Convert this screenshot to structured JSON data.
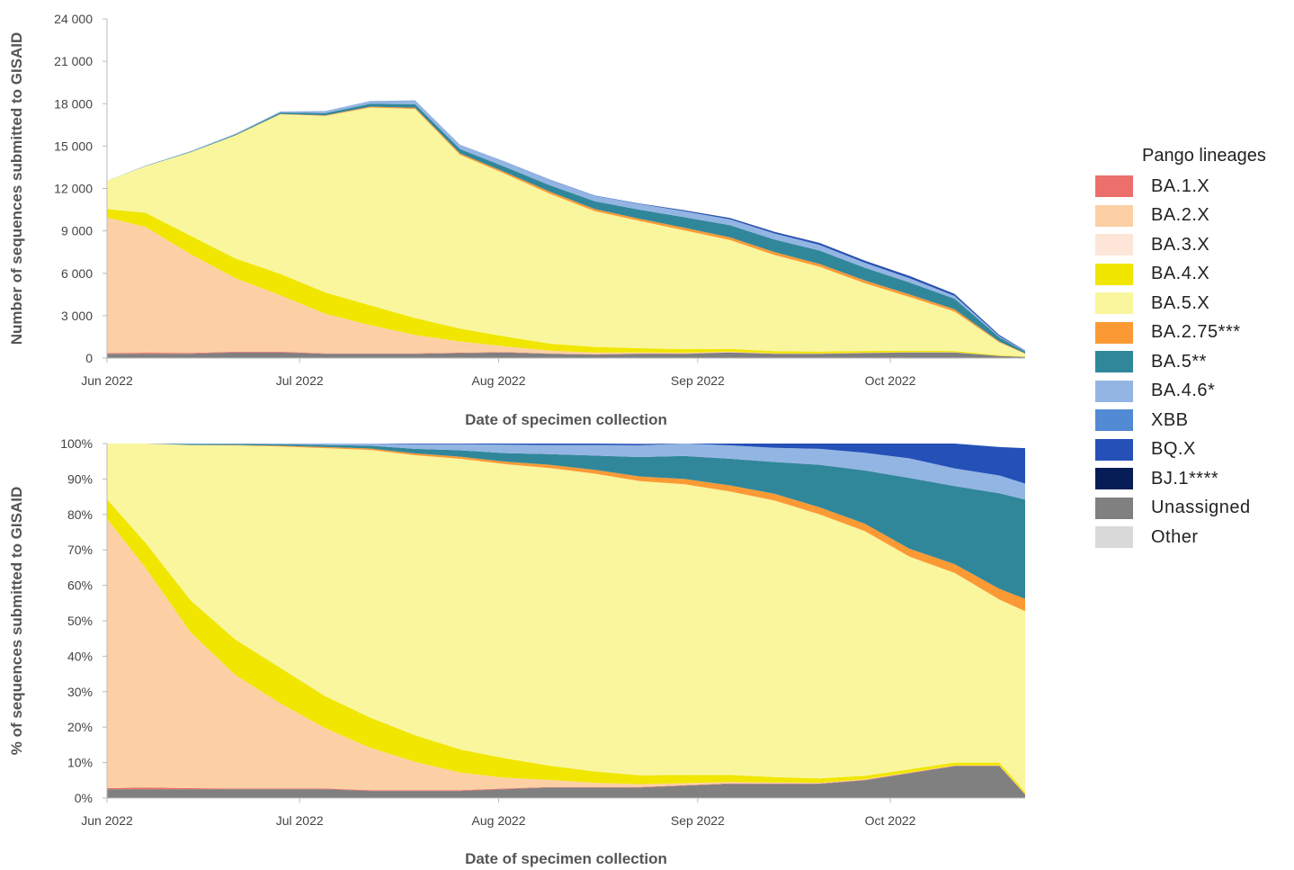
{
  "legend": {
    "title": "Pango lineages",
    "items": [
      {
        "name": "BA.1.X",
        "color": "#ec6f6b"
      },
      {
        "name": "BA.2.X",
        "color": "#fcd0a4"
      },
      {
        "name": "BA.3.X",
        "color": "#fde6d8"
      },
      {
        "name": "BA.4.X",
        "color": "#f0e600"
      },
      {
        "name": "BA.5.X",
        "color": "#faf69e"
      },
      {
        "name": "BA.2.75***",
        "color": "#fb9a35"
      },
      {
        "name": "BA.5**",
        "color": "#31879a"
      },
      {
        "name": "BA.4.6*",
        "color": "#93b5e3"
      },
      {
        "name": "XBB",
        "color": "#528ad4"
      },
      {
        "name": "BQ.X",
        "color": "#2450b8"
      },
      {
        "name": "BJ.1****",
        "color": "#061d55"
      },
      {
        "name": "Unassigned",
        "color": "#808080"
      },
      {
        "name": "Other",
        "color": "#d9d9d9"
      }
    ]
  },
  "chart_data": [
    {
      "type": "area",
      "stacked": true,
      "ylabel": "Number of sequences submitted to GISAID",
      "xlabel": "Date of specimen collection",
      "ylim": [
        0,
        24000
      ],
      "yticks": [
        "0",
        "3 000",
        "6 000",
        "9 000",
        "12 000",
        "15 000",
        "18 000",
        "21 000",
        "24 000"
      ],
      "xticks": [
        "Jun 2022",
        "Jul 2022",
        "Aug 2022",
        "Sep 2022",
        "Oct 2022"
      ],
      "x": [
        "2022-06-01",
        "2022-06-07",
        "2022-06-14",
        "2022-06-21",
        "2022-06-28",
        "2022-07-05",
        "2022-07-12",
        "2022-07-19",
        "2022-07-26",
        "2022-08-02",
        "2022-08-09",
        "2022-08-16",
        "2022-08-23",
        "2022-08-30",
        "2022-09-06",
        "2022-09-13",
        "2022-09-20",
        "2022-09-27",
        "2022-10-04",
        "2022-10-11",
        "2022-10-18",
        "2022-10-22"
      ],
      "series": [
        {
          "name": "Unassigned",
          "values": [
            300,
            300,
            300,
            400,
            400,
            300,
            300,
            300,
            350,
            400,
            300,
            250,
            300,
            300,
            400,
            300,
            300,
            350,
            400,
            400,
            150,
            80
          ]
        },
        {
          "name": "BA.1.X",
          "values": [
            50,
            80,
            60,
            50,
            50,
            40,
            30,
            30,
            30,
            30,
            20,
            20,
            20,
            20,
            10,
            10,
            10,
            10,
            10,
            10,
            5,
            5
          ]
        },
        {
          "name": "BA.2.X",
          "values": [
            9600,
            8900,
            7000,
            5200,
            4000,
            2800,
            2000,
            1300,
            800,
            400,
            200,
            120,
            80,
            60,
            40,
            30,
            20,
            20,
            10,
            10,
            5,
            5
          ]
        },
        {
          "name": "BA.4.X",
          "values": [
            600,
            1000,
            1300,
            1400,
            1500,
            1500,
            1400,
            1200,
            900,
            700,
            500,
            400,
            300,
            250,
            200,
            150,
            130,
            120,
            100,
            80,
            50,
            20
          ]
        },
        {
          "name": "BA.5.X",
          "values": [
            2000,
            3300,
            5900,
            8700,
            11300,
            12500,
            14000,
            14800,
            12300,
            11500,
            10600,
            9600,
            9000,
            8400,
            7700,
            6800,
            6000,
            4800,
            3800,
            2800,
            900,
            200
          ]
        },
        {
          "name": "BA.2.75***",
          "values": [
            0,
            0,
            0,
            10,
            20,
            40,
            60,
            80,
            100,
            120,
            150,
            150,
            150,
            180,
            200,
            200,
            200,
            200,
            180,
            150,
            60,
            20
          ]
        },
        {
          "name": "BA.5**",
          "values": [
            0,
            20,
            40,
            60,
            100,
            150,
            200,
            250,
            300,
            380,
            450,
            550,
            650,
            750,
            850,
            900,
            950,
            900,
            850,
            750,
            300,
            120
          ]
        },
        {
          "name": "BA.4.6*",
          "values": [
            0,
            20,
            40,
            60,
            80,
            150,
            200,
            250,
            300,
            350,
            380,
            380,
            400,
            420,
            420,
            420,
            400,
            350,
            300,
            200,
            80,
            40
          ]
        },
        {
          "name": "BQ.X",
          "values": [
            0,
            0,
            0,
            0,
            0,
            0,
            0,
            10,
            10,
            10,
            20,
            30,
            40,
            60,
            80,
            100,
            120,
            130,
            140,
            130,
            70,
            40
          ]
        },
        {
          "name": "BJ.1****",
          "values": [
            0,
            0,
            0,
            0,
            0,
            0,
            0,
            0,
            0,
            0,
            0,
            0,
            0,
            10,
            20,
            20,
            20,
            20,
            20,
            15,
            10,
            5
          ]
        }
      ]
    },
    {
      "type": "area",
      "stacked": true,
      "percent": true,
      "ylabel": "% of sequences submitted to GISAID",
      "xlabel": "Date of specimen collection",
      "ylim": [
        0,
        100
      ],
      "yticks": [
        "0%",
        "10%",
        "20%",
        "30%",
        "40%",
        "50%",
        "60%",
        "70%",
        "80%",
        "90%",
        "100%"
      ],
      "xticks": [
        "Jun 2022",
        "Jul 2022",
        "Aug 2022",
        "Sep 2022",
        "Oct 2022"
      ],
      "x": [
        "2022-06-01",
        "2022-06-07",
        "2022-06-14",
        "2022-06-21",
        "2022-06-28",
        "2022-07-05",
        "2022-07-12",
        "2022-07-19",
        "2022-07-26",
        "2022-08-02",
        "2022-08-09",
        "2022-08-16",
        "2022-08-23",
        "2022-08-30",
        "2022-09-06",
        "2022-09-13",
        "2022-09-20",
        "2022-09-27",
        "2022-10-04",
        "2022-10-11",
        "2022-10-18",
        "2022-10-22"
      ],
      "series": [
        {
          "name": "Unassigned",
          "values": [
            2.5,
            2.5,
            2.5,
            2.5,
            2.5,
            2.5,
            2,
            2,
            2,
            2.5,
            3,
            3,
            3,
            3.5,
            4,
            4,
            4,
            5,
            7,
            9,
            9,
            1
          ]
        },
        {
          "name": "BA.1.X",
          "values": [
            0.3,
            0.5,
            0.3,
            0.2,
            0.2,
            0.2,
            0.2,
            0.2,
            0.2,
            0.2,
            0.1,
            0.1,
            0.1,
            0.1,
            0.1,
            0.1,
            0.1,
            0.1,
            0.1,
            0.1,
            0.1,
            0.1
          ]
        },
        {
          "name": "BA.2.X",
          "values": [
            76,
            62,
            44,
            32,
            24,
            17,
            12,
            8,
            5,
            3,
            2,
            1.2,
            0.8,
            0.6,
            0.4,
            0.3,
            0.2,
            0.2,
            0.1,
            0.1,
            0.1,
            0.1
          ]
        },
        {
          "name": "BA.4.X",
          "values": [
            5.5,
            7,
            9,
            10,
            10,
            9,
            8.5,
            7.5,
            6.5,
            5.5,
            4,
            3.2,
            2.5,
            2.3,
            2,
            1.5,
            1.2,
            1,
            0.9,
            0.8,
            0.8,
            0.5
          ]
        },
        {
          "name": "BA.5.X",
          "values": [
            15.7,
            28,
            43.8,
            54.8,
            62.5,
            70,
            75.5,
            79,
            82,
            83,
            84,
            84,
            83,
            82,
            80,
            78,
            74.5,
            69,
            60,
            53.5,
            46,
            51
          ]
        },
        {
          "name": "BA.2.75***",
          "values": [
            0,
            0,
            0,
            0.1,
            0.2,
            0.3,
            0.4,
            0.5,
            0.6,
            0.7,
            0.9,
            1.1,
            1.3,
            1.5,
            1.7,
            1.9,
            2,
            2.1,
            2.2,
            2.5,
            3,
            3.5
          ]
        },
        {
          "name": "BA.5**",
          "values": [
            0,
            0.2,
            0.3,
            0.3,
            0.4,
            0.6,
            0.8,
            1.3,
            1.8,
            2.4,
            3,
            4,
            5.5,
            6.5,
            7.5,
            9,
            12,
            15,
            20,
            22,
            27,
            28
          ]
        },
        {
          "name": "BA.4.6*",
          "values": [
            0,
            0.2,
            0.3,
            0.3,
            0.4,
            0.6,
            0.8,
            1.3,
            1.7,
            2.4,
            2.6,
            3,
            3.3,
            3.5,
            3.8,
            4,
            4.5,
            5,
            5.5,
            5,
            5,
            4.5
          ]
        },
        {
          "name": "BQ.X",
          "values": [
            0,
            0,
            0,
            0,
            0,
            0.1,
            0.2,
            0.2,
            0.2,
            0.3,
            0.4,
            0.4,
            0.4,
            0.5,
            0.5,
            1.2,
            1.5,
            2.6,
            4.2,
            7,
            8,
            10
          ]
        },
        {
          "name": "BJ.1****",
          "values": [
            0,
            0,
            0,
            0,
            0,
            0,
            0,
            0,
            0,
            0,
            0,
            0,
            0,
            0,
            0,
            0,
            0,
            0,
            0,
            0,
            0,
            0
          ]
        }
      ]
    }
  ]
}
